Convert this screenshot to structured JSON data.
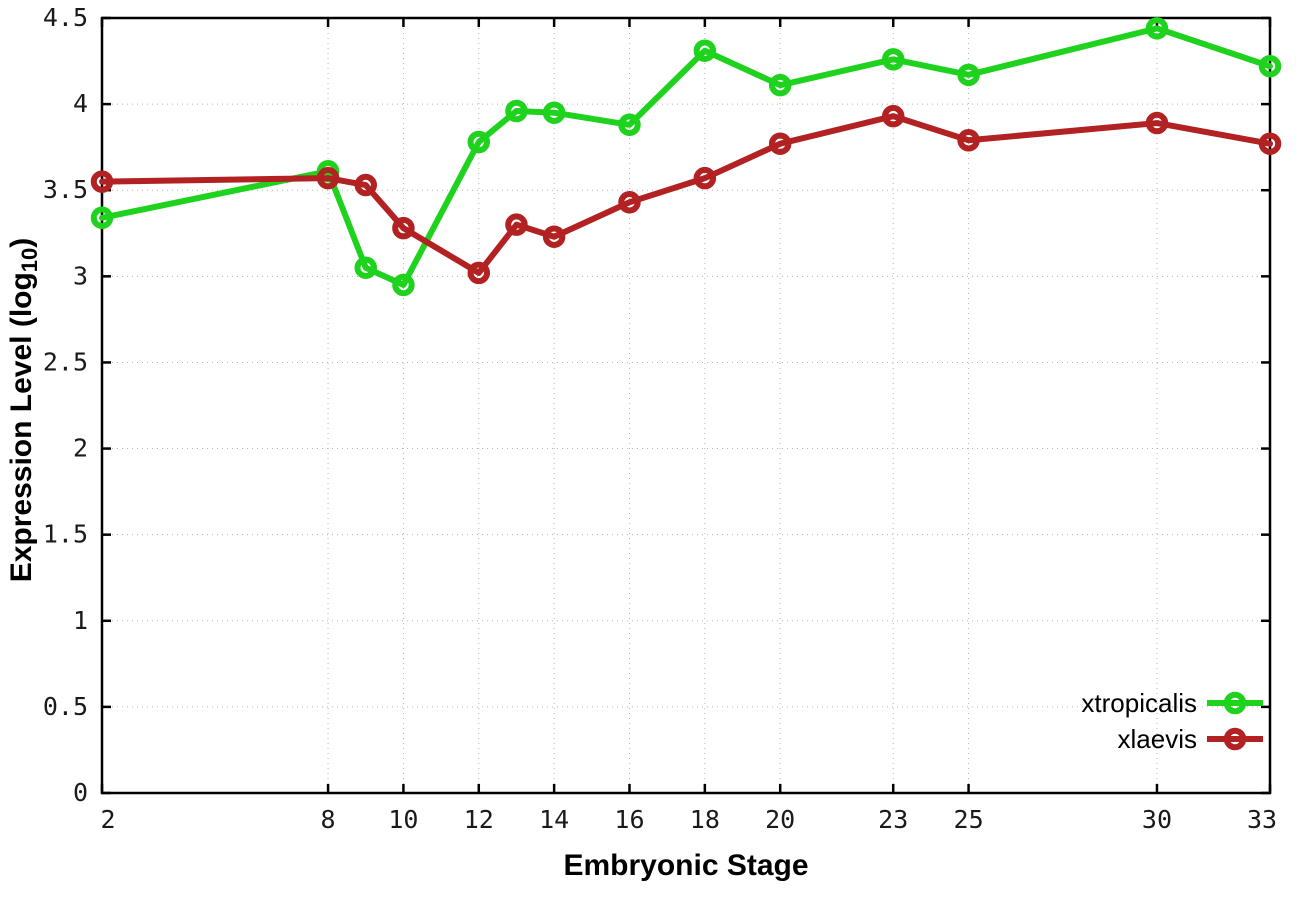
{
  "figure": {
    "background": "#ffffff",
    "border_color": "#000000",
    "grid_color": "#b5b5b5",
    "tick_label_color": "#1a1a1a"
  },
  "chart_data": {
    "type": "line",
    "title": "",
    "xlabel": "Embryonic Stage",
    "ylabel": "Expression Level (log10)",
    "ylabel_parts": {
      "main": "Expression Level (log",
      "subscript": "10",
      "suffix": ")"
    },
    "xlim": [
      2,
      33
    ],
    "ylim": [
      0,
      4.5
    ],
    "grid": true,
    "legend_position": "bottom-right-inside",
    "x_ticks": [
      2,
      8,
      10,
      12,
      14,
      16,
      18,
      20,
      23,
      25,
      30,
      33
    ],
    "x_tick_labels": [
      "2",
      "8",
      "10",
      "12",
      "14",
      "16",
      "18",
      "20",
      "23",
      "25",
      "30",
      "33"
    ],
    "y_ticks": [
      0,
      0.5,
      1,
      1.5,
      2,
      2.5,
      3,
      3.5,
      4,
      4.5
    ],
    "y_tick_labels": [
      "0",
      "0.5",
      "1",
      "1.5",
      "2",
      "2.5",
      "3",
      "3.5",
      "4",
      "4.5"
    ],
    "x": [
      2,
      8,
      9,
      10,
      12,
      13,
      14,
      16,
      18,
      20,
      23,
      25,
      30,
      33
    ],
    "marker": "open-circle",
    "series": [
      {
        "name": "xtropicalis",
        "color": "#1ed21e",
        "values": [
          3.34,
          3.61,
          3.05,
          2.95,
          3.78,
          3.96,
          3.95,
          3.88,
          4.31,
          4.11,
          4.26,
          4.17,
          4.44,
          4.22
        ]
      },
      {
        "name": "xlaevis",
        "color": "#b22222",
        "values": [
          3.55,
          3.57,
          3.53,
          3.28,
          3.02,
          3.3,
          3.23,
          3.43,
          3.57,
          3.77,
          3.93,
          3.79,
          3.89,
          3.77
        ]
      }
    ]
  }
}
